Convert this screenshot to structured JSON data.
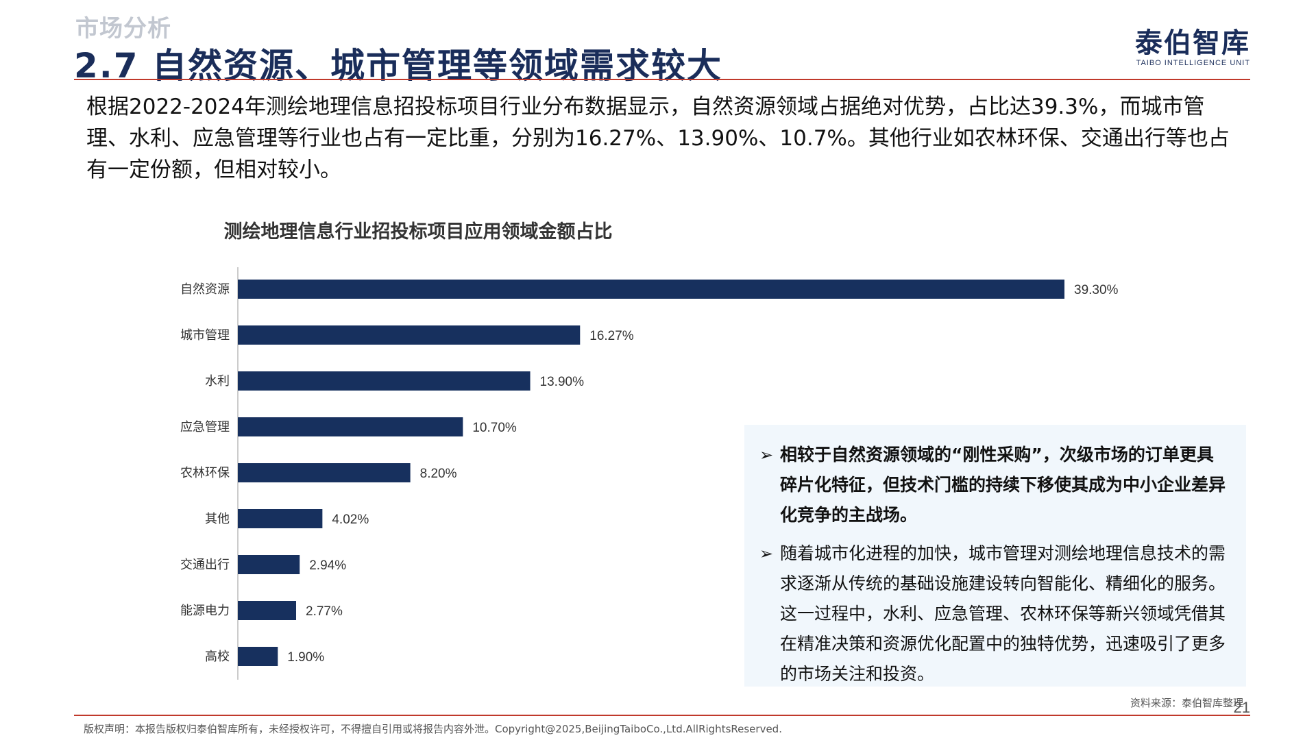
{
  "header": {
    "section_label": "市场分析",
    "title": "2.7 自然资源、城市管理等领域需求较大",
    "logo_main": "泰伯智库",
    "logo_sub": "TAIBO INTELLIGENCE UNIT"
  },
  "intro": {
    "text": "根据2022-2024年测绘地理信息招投标项目行业分布数据显示，自然资源领域占据绝对优势，占比达39.3%，而城市管理、水利、应急管理等行业也占有一定比重，分别为16.27%、13.90%、10.7%。其他行业如农林环保、交通出行等也占有一定份额，但相对较小。"
  },
  "chart_data": {
    "type": "bar",
    "orientation": "horizontal",
    "title": "测绘地理信息行业招投标项目应用领域金额占比",
    "categories": [
      "自然资源",
      "城市管理",
      "水利",
      "应急管理",
      "农林环保",
      "其他",
      "交通出行",
      "能源电力",
      "高校"
    ],
    "values": [
      39.3,
      16.27,
      13.9,
      10.7,
      8.2,
      4.02,
      2.94,
      2.77,
      1.9
    ],
    "value_labels": [
      "39.30%",
      "16.27%",
      "13.90%",
      "10.70%",
      "8.20%",
      "4.02%",
      "2.94%",
      "2.77%",
      "1.90%"
    ],
    "unit": "%",
    "xlim": [
      0,
      40
    ],
    "grid": false,
    "bar_color": "#17305e"
  },
  "notes": {
    "items": [
      {
        "text": "相较于自然资源领域的“刚性采购”，次级市场的订单更具碎片化特征，但技术门槛的持续下移使其成为中小企业差异化竞争的主战场。",
        "bold": true
      },
      {
        "text": "随着城市化进程的加快，城市管理对测绘地理信息技术的需求逐渐从传统的基础设施建设转向智能化、精细化的服务。这一过程中，水利、应急管理、农林环保等新兴领域凭借其在精准决策和资源优化配置中的独特优势，迅速吸引了更多的市场关注和投资。",
        "bold": false
      }
    ],
    "bullet": "➢"
  },
  "footer": {
    "source": "资料来源：泰伯智库整理",
    "page_number": "21",
    "copyright": "版权声明：本报告版权归泰伯智库所有，未经授权许可，不得擅自引用或将报告内容外泄。Copyright@2025,BeijingTaiboCo.,Ltd.AllRightsReserved."
  }
}
